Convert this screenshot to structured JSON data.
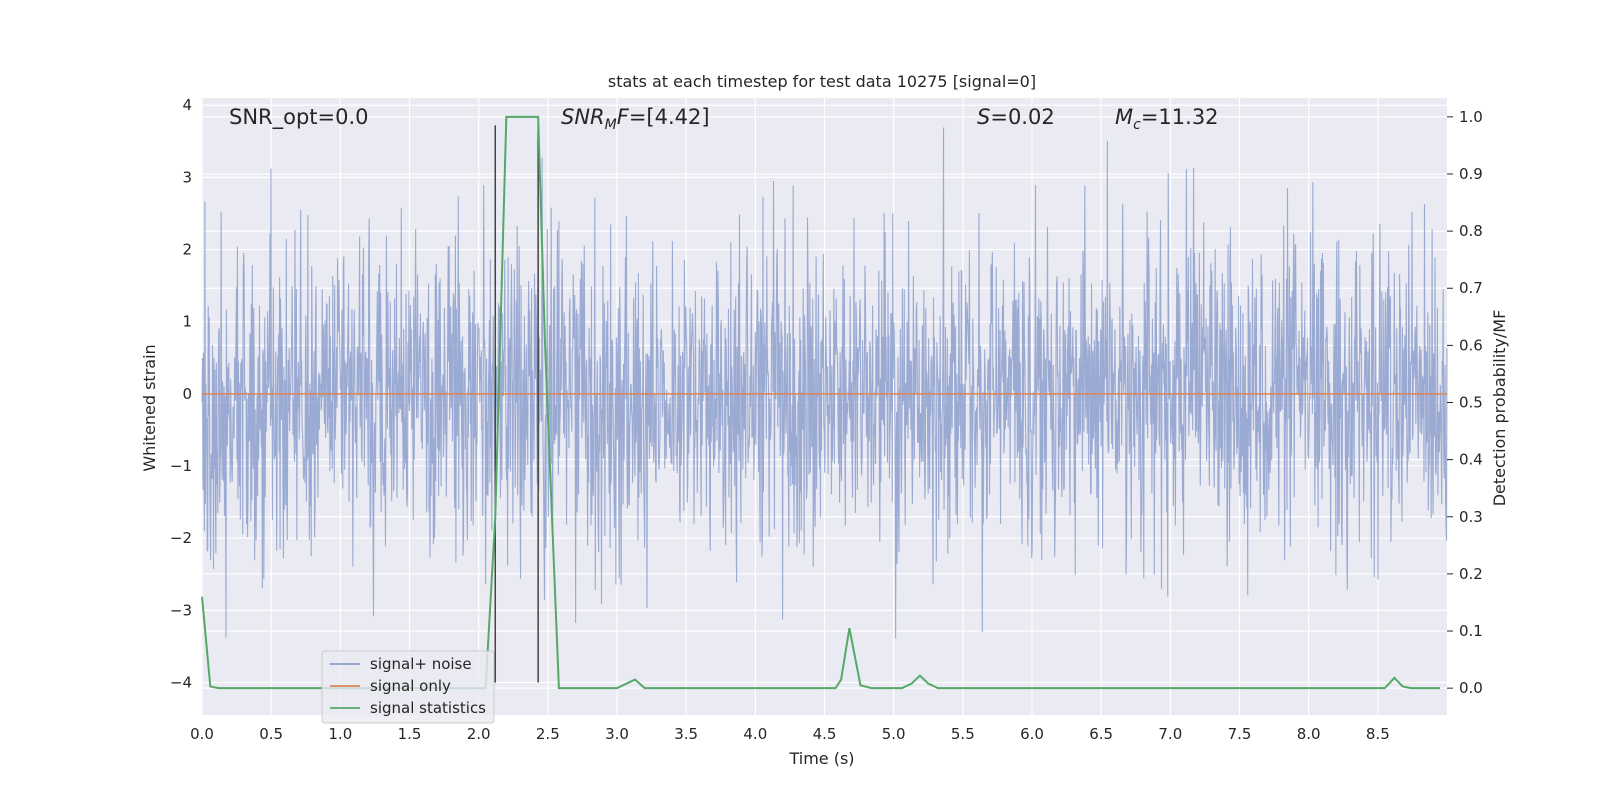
{
  "chart_data": {
    "type": "line",
    "title": "stats at each timestep for test data 10275 [signal=0]",
    "xlabel": "Time (s)",
    "ylabel_left": "Whitened strain",
    "ylabel_right": "Detection probability/MF",
    "xlim": [
      0,
      9.0
    ],
    "ylim_left": [
      -4.45,
      4.1
    ],
    "ylim_right": [
      -0.047,
      1.033
    ],
    "x_ticks": [
      "0.0",
      "0.5",
      "1.0",
      "1.5",
      "2.0",
      "2.5",
      "3.0",
      "3.5",
      "4.0",
      "4.5",
      "5.0",
      "5.5",
      "6.0",
      "6.5",
      "7.0",
      "7.5",
      "8.0",
      "8.5"
    ],
    "y_ticks_left": [
      "4",
      "3",
      "2",
      "1",
      "0",
      "−1",
      "−2",
      "−3",
      "−4"
    ],
    "y_ticks_right": [
      "1.0",
      "0.9",
      "0.8",
      "0.7",
      "0.6",
      "0.5",
      "0.4",
      "0.3",
      "0.2",
      "0.1",
      "0.0"
    ],
    "grid": true,
    "legend_position": "lower-left",
    "annotations": {
      "snr_opt": "SNR_opt=0.0",
      "snr_mf": "=[4.42]",
      "s_stat": "=0.02",
      "mc": "=11.32"
    },
    "vertical_markers": [
      2.12,
      2.43
    ],
    "series": [
      {
        "name": "signal+ noise",
        "color": "#8c9fcc",
        "axis": "left",
        "note_values": "dense noise, mostly within ±2 with excursions to about ±3.5"
      },
      {
        "name": "signal only",
        "color": "#dd8452",
        "axis": "left",
        "x": [
          0,
          9.0
        ],
        "y": [
          0,
          0
        ]
      },
      {
        "name": "signal statistics",
        "color": "#55a868",
        "axis": "right",
        "x": [
          0.0,
          0.06,
          0.12,
          2.05,
          2.12,
          2.2,
          2.43,
          2.48,
          2.58,
          3.0,
          3.13,
          3.2,
          4.58,
          4.62,
          4.68,
          4.76,
          4.84,
          5.06,
          5.13,
          5.19,
          5.25,
          5.32,
          8.55,
          8.62,
          8.68,
          8.74,
          8.95
        ],
        "y": [
          0.16,
          0.003,
          0.0,
          0.0,
          0.3,
          1.0,
          1.0,
          0.6,
          0.0,
          0.0,
          0.015,
          0.0,
          0.0,
          0.015,
          0.105,
          0.005,
          0.0,
          0.0,
          0.008,
          0.022,
          0.008,
          0.0,
          0.0,
          0.018,
          0.003,
          0.0,
          0.0
        ]
      }
    ]
  }
}
